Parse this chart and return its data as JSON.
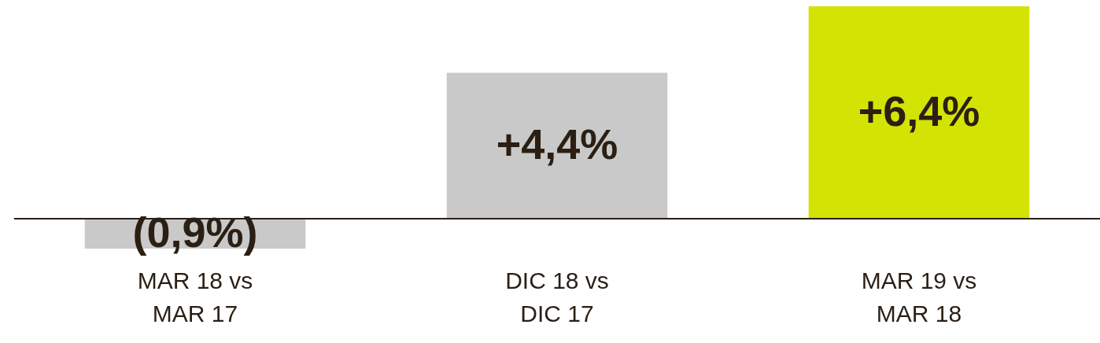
{
  "chart_data": {
    "type": "bar",
    "categories": [
      "MAR 18 vs MAR 17",
      "DIC 18 vs DIC 17",
      "MAR 19 vs MAR 18"
    ],
    "values": [
      -0.9,
      4.4,
      6.4
    ],
    "value_labels": [
      "(0,9%)",
      "+4,4%",
      "+6,4%"
    ],
    "colors": [
      "#c9c9c9",
      "#c9c9c9",
      "#d3e304"
    ],
    "grid": false,
    "legend": false
  }
}
